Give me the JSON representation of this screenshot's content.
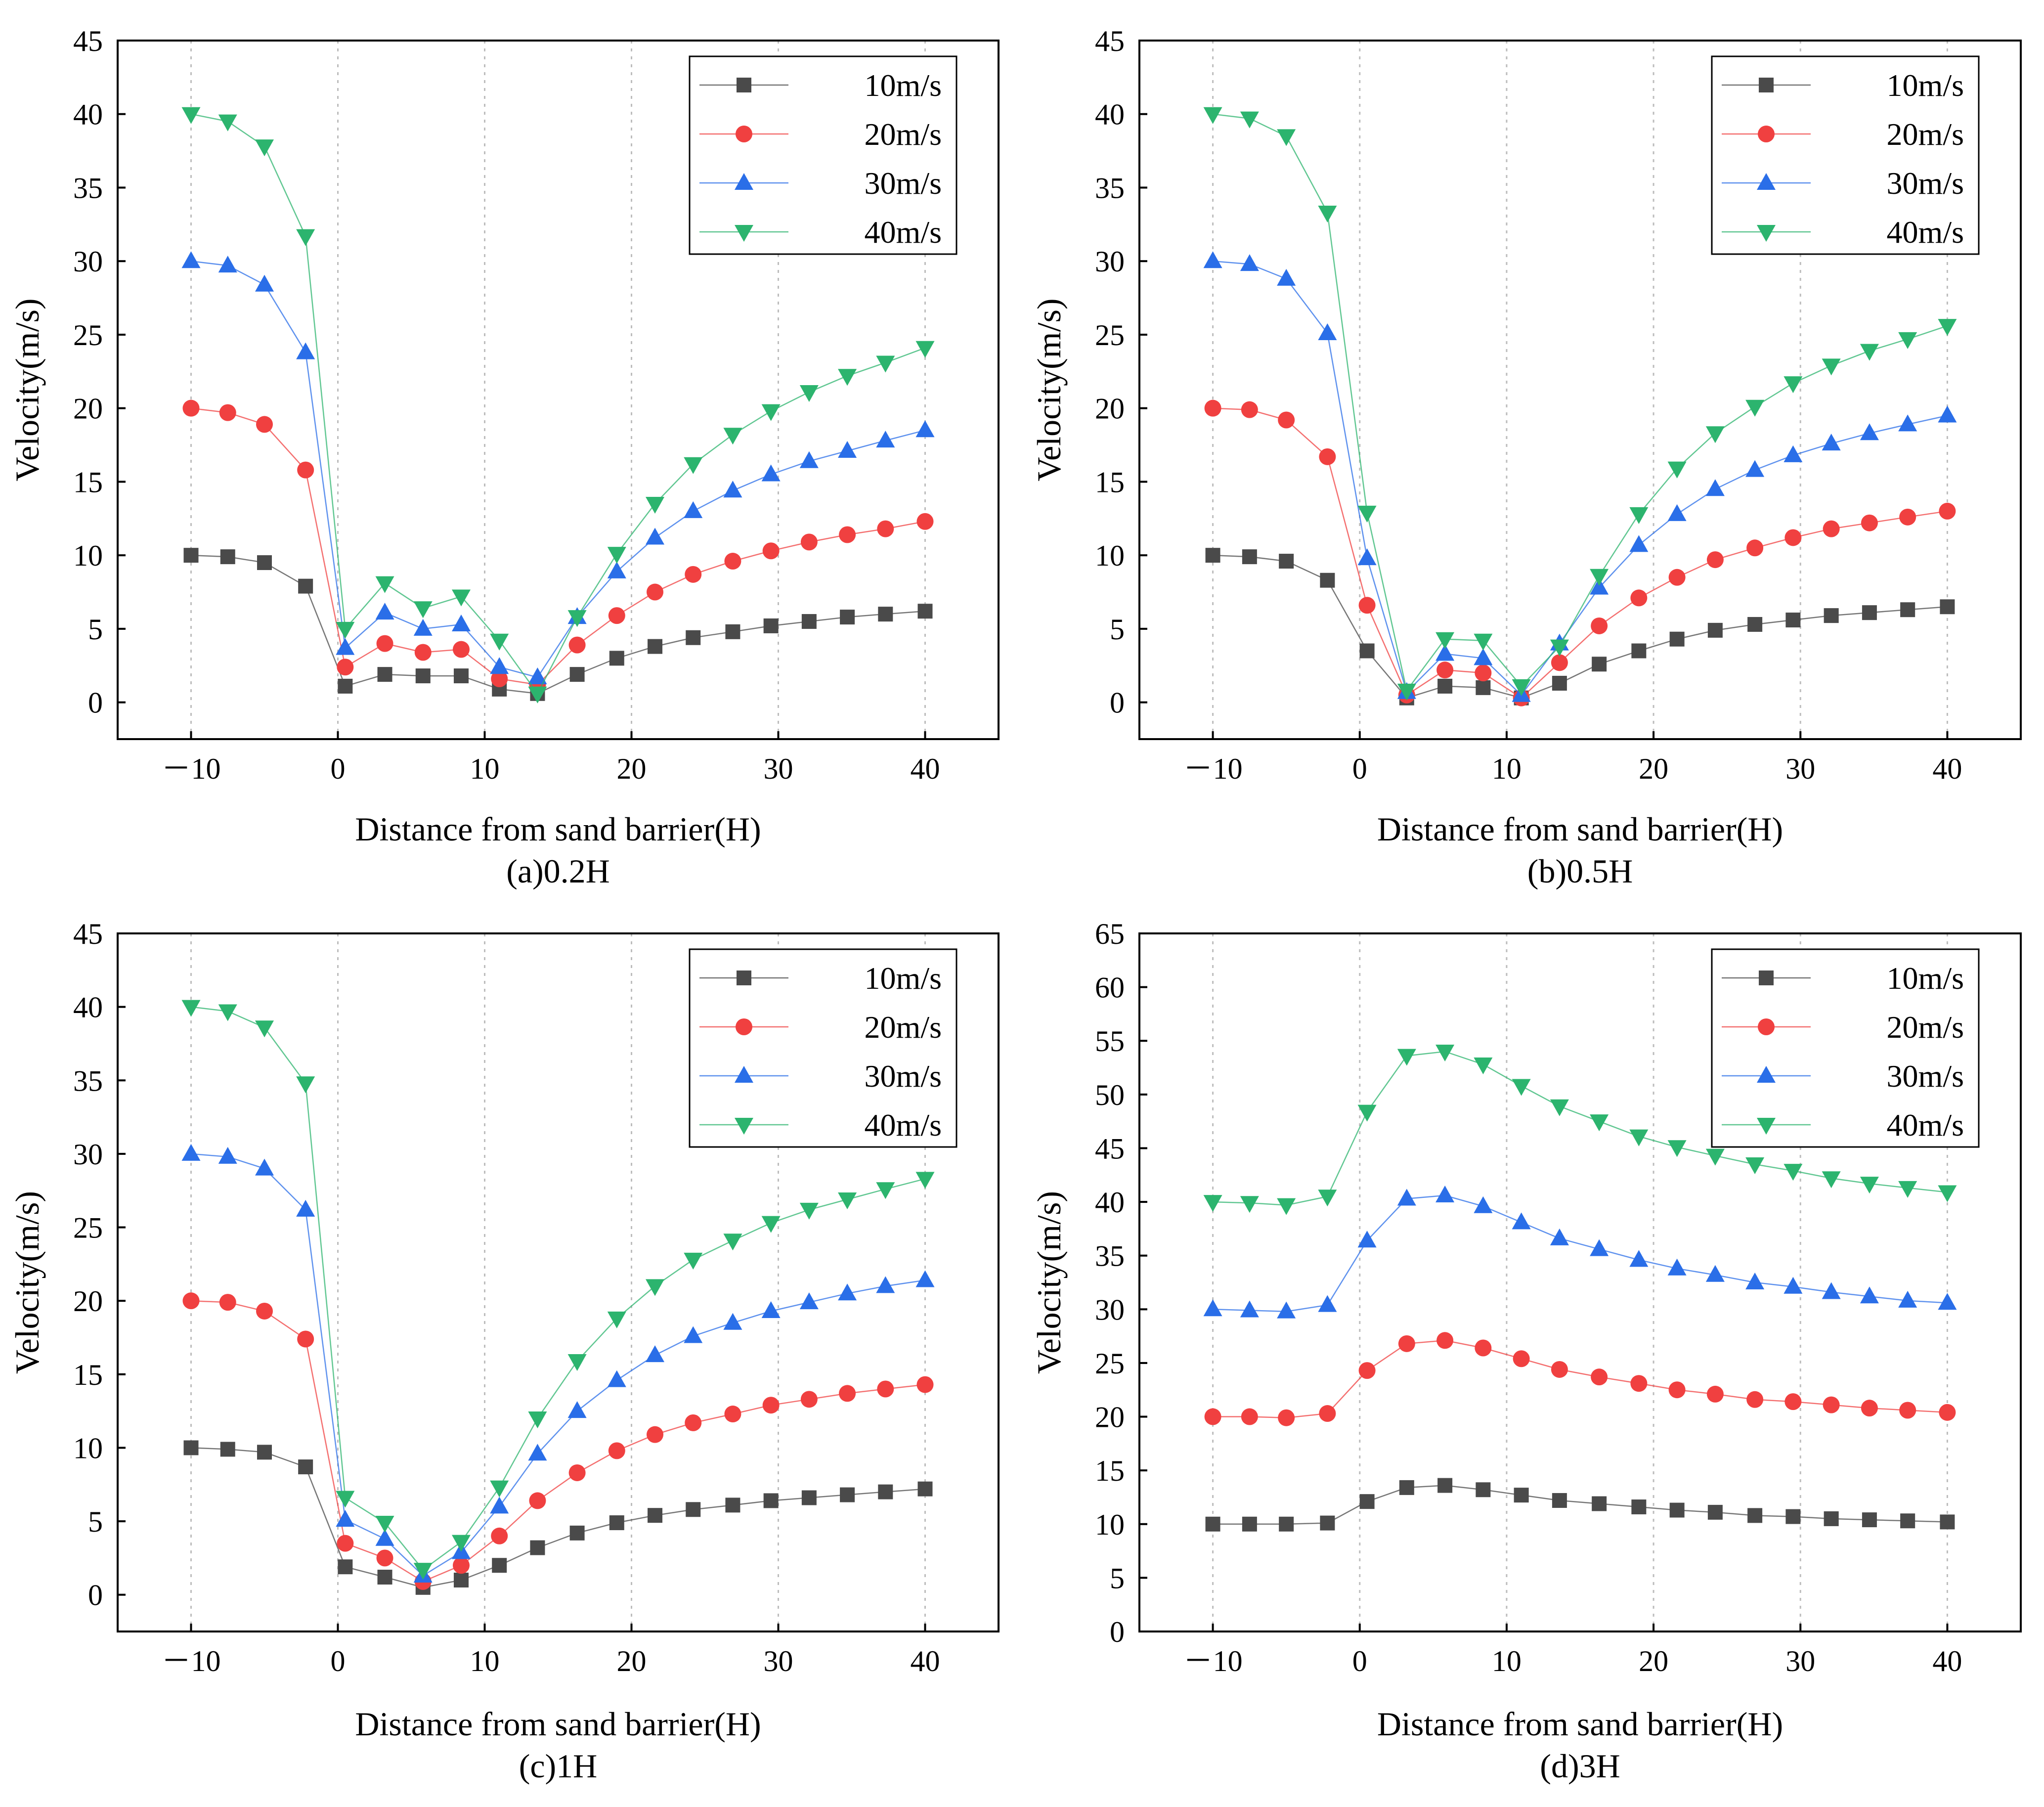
{
  "colors": {
    "10m/s": "#4a4a4a",
    "20m/s": "#f04040",
    "30m/s": "#2a6ee8",
    "40m/s": "#2cb46e"
  },
  "chart_data": [
    {
      "type": "line",
      "caption": "(a)0.2H",
      "xlabel": "Distance from sand barrier(H)",
      "ylabel": "Velocity(m/s)",
      "xlim": [
        -15,
        45
      ],
      "ylim": [
        -2.5,
        45
      ],
      "xticks": [
        -10,
        0,
        10,
        20,
        30,
        40
      ],
      "xtick_labels": [
        "－10",
        "0",
        "10",
        "20",
        "30",
        "40"
      ],
      "yticks": [
        0,
        5,
        10,
        15,
        20,
        25,
        30,
        35,
        40,
        45
      ],
      "vgrid": [
        -10,
        0,
        10,
        20,
        30,
        40
      ],
      "legend": "top-right",
      "x": [
        -10,
        -7.5,
        -5,
        -2.2,
        0.5,
        3.2,
        5.8,
        8.4,
        11,
        13.6,
        16.3,
        19,
        21.6,
        24.2,
        26.9,
        29.5,
        32.1,
        34.7,
        37.3,
        40
      ],
      "series": [
        {
          "name": "10m/s",
          "marker": "square",
          "values": [
            10,
            9.9,
            9.5,
            7.9,
            1.1,
            1.9,
            1.8,
            1.8,
            0.9,
            0.6,
            1.9,
            3,
            3.8,
            4.4,
            4.8,
            5.2,
            5.5,
            5.8,
            6,
            6.2
          ]
        },
        {
          "name": "20m/s",
          "marker": "circle",
          "values": [
            20,
            19.7,
            18.9,
            15.8,
            2.4,
            4,
            3.4,
            3.6,
            1.6,
            1.2,
            3.9,
            5.9,
            7.5,
            8.7,
            9.6,
            10.3,
            10.9,
            11.4,
            11.8,
            12.3
          ]
        },
        {
          "name": "30m/s",
          "marker": "triangle-up",
          "values": [
            30,
            29.7,
            28.4,
            23.8,
            3.7,
            6.1,
            5,
            5.3,
            2.4,
            1.7,
            5.8,
            8.9,
            11.2,
            13,
            14.4,
            15.5,
            16.4,
            17.1,
            17.8,
            18.5
          ]
        },
        {
          "name": "40m/s",
          "marker": "triangle-down",
          "values": [
            40,
            39.5,
            37.8,
            31.7,
            5,
            8.1,
            6.4,
            7.2,
            4.2,
            0.6,
            5.8,
            10.1,
            13.5,
            16.2,
            18.2,
            19.8,
            21.1,
            22.2,
            23.1,
            24.1
          ]
        }
      ]
    },
    {
      "type": "line",
      "caption": "(b)0.5H",
      "xlabel": "Distance from sand barrier(H)",
      "ylabel": "Velocity(m/s)",
      "xlim": [
        -15,
        45
      ],
      "ylim": [
        -2.5,
        45
      ],
      "xticks": [
        -10,
        0,
        10,
        20,
        30,
        40
      ],
      "xtick_labels": [
        "－10",
        "0",
        "10",
        "20",
        "30",
        "40"
      ],
      "yticks": [
        0,
        5,
        10,
        15,
        20,
        25,
        30,
        35,
        40,
        45
      ],
      "vgrid": [
        -10,
        0,
        10,
        20,
        30,
        40
      ],
      "legend": "top-right",
      "x": [
        -10,
        -7.5,
        -5,
        -2.2,
        0.5,
        3.2,
        5.8,
        8.4,
        11,
        13.6,
        16.3,
        19,
        21.6,
        24.2,
        26.9,
        29.5,
        32.1,
        34.7,
        37.3,
        40
      ],
      "series": [
        {
          "name": "10m/s",
          "marker": "square",
          "values": [
            10,
            9.9,
            9.6,
            8.3,
            3.5,
            0.3,
            1.1,
            1,
            0.3,
            1.3,
            2.6,
            3.5,
            4.3,
            4.9,
            5.3,
            5.6,
            5.9,
            6.1,
            6.3,
            6.5
          ]
        },
        {
          "name": "20m/s",
          "marker": "circle",
          "values": [
            20,
            19.9,
            19.2,
            16.7,
            6.6,
            0.5,
            2.2,
            2,
            0.3,
            2.7,
            5.2,
            7.1,
            8.5,
            9.7,
            10.5,
            11.2,
            11.8,
            12.2,
            12.6,
            13
          ]
        },
        {
          "name": "30m/s",
          "marker": "triangle-up",
          "values": [
            30,
            29.8,
            28.8,
            25.1,
            9.8,
            0.7,
            3.3,
            3,
            0.5,
            4,
            7.8,
            10.7,
            12.8,
            14.5,
            15.8,
            16.8,
            17.6,
            18.3,
            18.9,
            19.5
          ]
        },
        {
          "name": "40m/s",
          "marker": "triangle-down",
          "values": [
            40,
            39.7,
            38.5,
            33.3,
            12.9,
            0.8,
            4.3,
            4.2,
            1.1,
            3.8,
            8.6,
            12.8,
            15.9,
            18.3,
            20.1,
            21.7,
            22.9,
            23.9,
            24.7,
            25.6
          ]
        }
      ]
    },
    {
      "type": "line",
      "caption": "(c)1H",
      "xlabel": "Distance from sand barrier(H)",
      "ylabel": "Velocity(m/s)",
      "xlim": [
        -15,
        45
      ],
      "ylim": [
        -2.5,
        45
      ],
      "xticks": [
        -10,
        0,
        10,
        20,
        30,
        40
      ],
      "xtick_labels": [
        "－10",
        "0",
        "10",
        "20",
        "30",
        "40"
      ],
      "yticks": [
        0,
        5,
        10,
        15,
        20,
        25,
        30,
        35,
        40,
        45
      ],
      "vgrid": [
        -10,
        0,
        10,
        20,
        30,
        40
      ],
      "legend": "top-right",
      "x": [
        -10,
        -7.5,
        -5,
        -2.2,
        0.5,
        3.2,
        5.8,
        8.4,
        11,
        13.6,
        16.3,
        19,
        21.6,
        24.2,
        26.9,
        29.5,
        32.1,
        34.7,
        37.3,
        40
      ],
      "series": [
        {
          "name": "10m/s",
          "marker": "square",
          "values": [
            10,
            9.9,
            9.7,
            8.7,
            1.9,
            1.2,
            0.5,
            1,
            2,
            3.2,
            4.2,
            4.9,
            5.4,
            5.8,
            6.1,
            6.4,
            6.6,
            6.8,
            7,
            7.2
          ]
        },
        {
          "name": "20m/s",
          "marker": "circle",
          "values": [
            20,
            19.9,
            19.3,
            17.4,
            3.5,
            2.5,
            0.9,
            2,
            4,
            6.4,
            8.3,
            9.8,
            10.9,
            11.7,
            12.3,
            12.9,
            13.3,
            13.7,
            14,
            14.3
          ]
        },
        {
          "name": "30m/s",
          "marker": "triangle-up",
          "values": [
            30,
            29.8,
            29,
            26.2,
            5.1,
            3.8,
            1.3,
            2.9,
            6,
            9.6,
            12.5,
            14.6,
            16.3,
            17.6,
            18.5,
            19.3,
            19.9,
            20.5,
            21,
            21.4
          ]
        },
        {
          "name": "40m/s",
          "marker": "triangle-down",
          "values": [
            40,
            39.7,
            38.6,
            34.8,
            6.6,
            4.9,
            1.7,
            3.6,
            7.3,
            12,
            15.9,
            18.8,
            21,
            22.8,
            24.1,
            25.3,
            26.2,
            26.9,
            27.6,
            28.3
          ]
        }
      ]
    },
    {
      "type": "line",
      "caption": "(d)3H",
      "xlabel": "Distance from sand barrier(H)",
      "ylabel": "Velocity(m/s)",
      "xlim": [
        -15,
        45
      ],
      "ylim": [
        0,
        65
      ],
      "xticks": [
        -10,
        0,
        10,
        20,
        30,
        40
      ],
      "xtick_labels": [
        "－10",
        "0",
        "10",
        "20",
        "30",
        "40"
      ],
      "yticks": [
        0,
        5,
        10,
        15,
        20,
        25,
        30,
        35,
        40,
        45,
        50,
        55,
        60,
        65
      ],
      "vgrid": [
        -10,
        0,
        10,
        20,
        30,
        40
      ],
      "legend": "top-right",
      "x": [
        -10,
        -7.5,
        -5,
        -2.2,
        0.5,
        3.2,
        5.8,
        8.4,
        11,
        13.6,
        16.3,
        19,
        21.6,
        24.2,
        26.9,
        29.5,
        32.1,
        34.7,
        37.3,
        40
      ],
      "series": [
        {
          "name": "10m/s",
          "marker": "square",
          "values": [
            10,
            10,
            10,
            10.1,
            12.1,
            13.4,
            13.6,
            13.2,
            12.7,
            12.2,
            11.9,
            11.6,
            11.3,
            11.1,
            10.8,
            10.7,
            10.5,
            10.4,
            10.3,
            10.2
          ]
        },
        {
          "name": "20m/s",
          "marker": "circle",
          "values": [
            20,
            20,
            19.9,
            20.3,
            24.3,
            26.8,
            27.1,
            26.4,
            25.4,
            24.4,
            23.7,
            23.1,
            22.5,
            22.1,
            21.6,
            21.4,
            21.1,
            20.8,
            20.6,
            20.4
          ]
        },
        {
          "name": "30m/s",
          "marker": "triangle-up",
          "values": [
            30,
            29.9,
            29.8,
            30.4,
            36.4,
            40.3,
            40.6,
            39.6,
            38.1,
            36.6,
            35.6,
            34.6,
            33.8,
            33.2,
            32.5,
            32.1,
            31.6,
            31.2,
            30.8,
            30.6
          ]
        },
        {
          "name": "40m/s",
          "marker": "triangle-down",
          "values": [
            40,
            39.9,
            39.7,
            40.5,
            48.4,
            53.6,
            54,
            52.8,
            50.8,
            48.9,
            47.5,
            46.1,
            45.1,
            44.3,
            43.5,
            42.9,
            42.2,
            41.7,
            41.3,
            40.9
          ]
        }
      ]
    }
  ]
}
